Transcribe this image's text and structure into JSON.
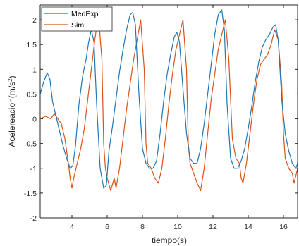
{
  "chart_data": {
    "type": "line",
    "title": "",
    "xlabel": "tiempo(s)",
    "ylabel": "Acelereacion(m/s²)",
    "ylabel_base": "Acelereacion(m/s",
    "ylabel_sup": "2",
    "ylabel_close": ")",
    "xlim": [
      2.2,
      16.8
    ],
    "ylim": [
      -2,
      2.3
    ],
    "xticks": [
      4,
      6,
      8,
      10,
      12,
      14,
      16
    ],
    "xtick_labels": [
      "4",
      "6",
      "8",
      "10",
      "12",
      "14",
      "16"
    ],
    "yticks": [
      -2,
      -1.5,
      -1,
      -0.5,
      0,
      0.5,
      1,
      1.5,
      2
    ],
    "ytick_labels": [
      "-2",
      "-1.5",
      "-1",
      "-0.5",
      "0",
      "0.5",
      "1",
      "1.5",
      "2"
    ],
    "grid": false,
    "legend_position": "top-left",
    "series": [
      {
        "name": "MedExp",
        "color": "#1f77b4",
        "x": [
          2.2,
          2.4,
          2.6,
          2.75,
          2.9,
          3.1,
          3.3,
          3.5,
          3.7,
          3.9,
          4.05,
          4.2,
          4.4,
          4.6,
          4.8,
          4.95,
          5.1,
          5.25,
          5.4,
          5.6,
          5.8,
          5.95,
          6.1,
          6.3,
          6.5,
          6.7,
          6.9,
          7.1,
          7.3,
          7.45,
          7.6,
          7.8,
          8.0,
          8.2,
          8.4,
          8.6,
          8.8,
          9.0,
          9.2,
          9.4,
          9.6,
          9.8,
          9.95,
          10.1,
          10.3,
          10.5,
          10.7,
          10.9,
          11.1,
          11.3,
          11.5,
          11.7,
          11.9,
          12.1,
          12.3,
          12.5,
          12.65,
          12.8,
          13.0,
          13.2,
          13.4,
          13.6,
          13.8,
          14.0,
          14.2,
          14.4,
          14.6,
          14.8,
          15.0,
          15.2,
          15.4,
          15.55,
          15.7,
          15.9,
          16.1,
          16.3,
          16.5,
          16.7,
          16.8
        ],
        "values": [
          0.5,
          0.75,
          0.93,
          0.8,
          0.35,
          0.05,
          -0.25,
          -0.55,
          -0.8,
          -1.0,
          -0.95,
          -0.55,
          0.3,
          0.85,
          1.2,
          1.55,
          1.8,
          1.55,
          0.3,
          -1.0,
          -1.4,
          -1.35,
          -0.65,
          -0.15,
          0.4,
          0.95,
          1.4,
          1.8,
          2.1,
          2.15,
          1.9,
          0.5,
          -0.6,
          -0.9,
          -1.0,
          -1.0,
          -0.85,
          -0.3,
          0.35,
          0.9,
          1.3,
          1.65,
          1.75,
          1.55,
          0.6,
          -0.3,
          -0.8,
          -0.9,
          -0.9,
          -0.6,
          -0.1,
          0.5,
          1.1,
          1.7,
          2.1,
          2.2,
          1.8,
          0.3,
          -0.8,
          -1.0,
          -1.0,
          -0.85,
          -0.6,
          -0.2,
          0.25,
          0.75,
          1.15,
          1.45,
          1.6,
          1.7,
          1.85,
          1.9,
          1.6,
          0.4,
          -0.3,
          -0.65,
          -0.9,
          -1.0,
          -0.9
        ]
      },
      {
        "name": "Sim",
        "color": "#d95319",
        "x": [
          2.2,
          2.5,
          2.8,
          3.0,
          3.2,
          3.4,
          3.6,
          3.8,
          3.9,
          4.0,
          4.1,
          4.3,
          4.5,
          4.7,
          4.9,
          5.1,
          5.3,
          5.5,
          5.7,
          5.8,
          5.9,
          6.0,
          6.2,
          6.4,
          6.5,
          6.7,
          6.9,
          7.1,
          7.3,
          7.5,
          7.7,
          7.9,
          8.1,
          8.2,
          8.3,
          8.5,
          8.7,
          8.9,
          9.1,
          9.3,
          9.5,
          9.7,
          9.9,
          10.1,
          10.3,
          10.5,
          10.6,
          10.7,
          10.9,
          11.1,
          11.3,
          11.5,
          11.7,
          11.9,
          12.1,
          12.3,
          12.5,
          12.7,
          12.9,
          13.1,
          13.3,
          13.5,
          13.6,
          13.7,
          13.9,
          14.1,
          14.3,
          14.5,
          14.7,
          14.9,
          15.1,
          15.3,
          15.5,
          15.7,
          15.9,
          16.0,
          16.1,
          16.3,
          16.5,
          16.6,
          16.8
        ],
        "values": [
          0.0,
          0.05,
          0.0,
          0.1,
          0.0,
          -0.1,
          -0.4,
          -0.9,
          -1.2,
          -1.4,
          -1.2,
          -0.9,
          -0.6,
          -0.2,
          0.4,
          1.0,
          1.6,
          2.1,
          1.2,
          -0.5,
          -1.0,
          -1.2,
          -1.45,
          -1.2,
          -1.4,
          -1.0,
          -0.4,
          0.2,
          0.7,
          1.2,
          1.6,
          2.0,
          1.0,
          -0.5,
          -0.9,
          -1.0,
          -1.2,
          -1.3,
          -1.0,
          -0.4,
          0.3,
          0.9,
          1.4,
          1.7,
          2.0,
          1.0,
          -0.5,
          -0.9,
          -1.1,
          -1.3,
          -1.45,
          -1.0,
          -0.3,
          0.4,
          0.9,
          1.4,
          1.7,
          2.0,
          1.2,
          -0.4,
          -0.8,
          -0.9,
          -1.2,
          -1.3,
          -0.9,
          -0.3,
          0.3,
          0.8,
          1.1,
          1.2,
          1.3,
          1.5,
          1.8,
          1.6,
          0.7,
          -0.3,
          -0.8,
          -1.0,
          -1.1,
          -1.3,
          -1.0
        ]
      }
    ]
  }
}
